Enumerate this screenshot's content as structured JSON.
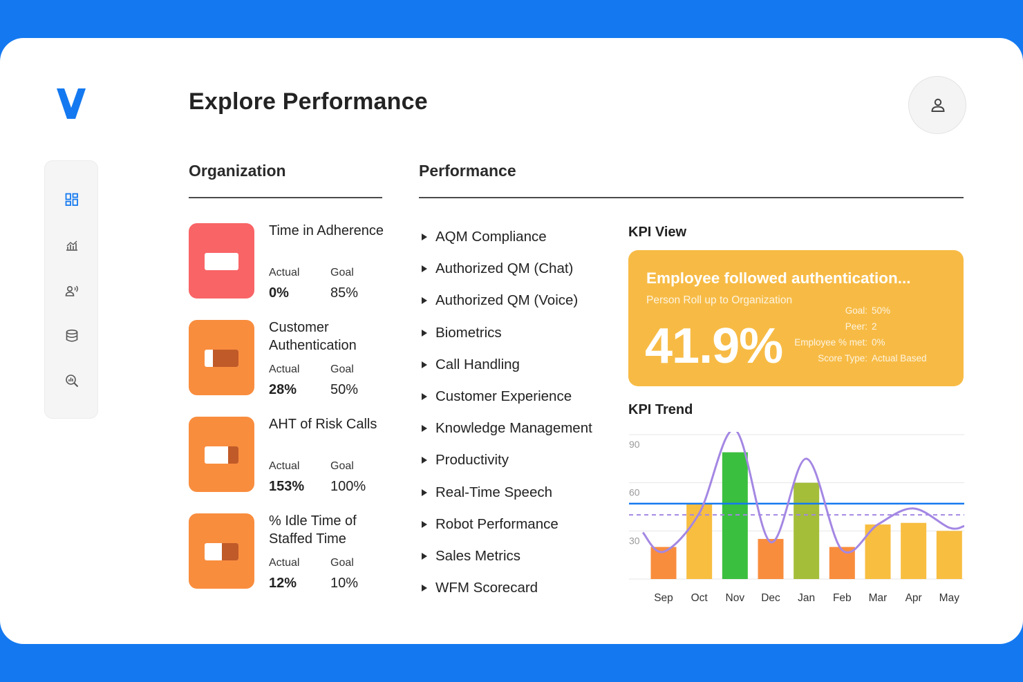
{
  "app": {
    "logo_letter": "V",
    "page_title": "Explore Performance"
  },
  "sidebar": {
    "items": [
      {
        "name": "dashboard-icon",
        "active": true
      },
      {
        "name": "analytics-icon",
        "active": false
      },
      {
        "name": "users-speech-icon",
        "active": false
      },
      {
        "name": "database-icon",
        "active": false
      },
      {
        "name": "search-analytics-icon",
        "active": false
      }
    ]
  },
  "organization": {
    "title": "Organization",
    "actual_label": "Actual",
    "goal_label": "Goal",
    "items": [
      {
        "name": "Time in Adherence",
        "actual": "0%",
        "goal": "85%",
        "color": "#f96466",
        "fill": 0
      },
      {
        "name": "Customer Authentication",
        "actual": "28%",
        "goal": "50%",
        "color": "#f98d3e",
        "fill": 0.75
      },
      {
        "name": "AHT of Risk Calls",
        "actual": "153%",
        "goal": "100%",
        "color": "#f98d3e",
        "fill": 0.3
      },
      {
        "name": "% Idle Time of Staffed Time",
        "actual": "12%",
        "goal": "10%",
        "color": "#f98d3e",
        "fill": 0.5
      }
    ]
  },
  "performance": {
    "title": "Performance",
    "items": [
      "AQM Compliance",
      "Authorized QM (Chat)",
      "Authorized QM (Voice)",
      "Biometrics",
      "Call Handling",
      "Customer Experience",
      "Knowledge Management",
      "Productivity",
      "Real-Time Speech",
      "Robot Performance",
      "Sales Metrics",
      "WFM Scorecard"
    ]
  },
  "kpi_view": {
    "title": "KPI View",
    "headline": "Employee followed authentication...",
    "subtitle": "Person Roll up to Organization",
    "value": "41.9%",
    "stats": [
      {
        "label": "Goal:",
        "value": "50%"
      },
      {
        "label": "Peer:",
        "value": "2"
      },
      {
        "label": "Employee % met:",
        "value": "0%"
      },
      {
        "label": "Score Type:",
        "value": "Actual Based"
      }
    ],
    "color": "#f7bb45"
  },
  "kpi_trend": {
    "title": "KPI Trend"
  },
  "chart_data": {
    "type": "bar",
    "categories": [
      "Sep",
      "Oct",
      "Nov",
      "Dec",
      "Jan",
      "Feb",
      "Mar",
      "Apr",
      "May"
    ],
    "values": [
      20,
      47,
      79,
      25,
      60,
      20,
      34,
      35,
      30
    ],
    "bar_colors": [
      "#f98d3e",
      "#f8be40",
      "#3bbf3f",
      "#f98d3e",
      "#a4be3a",
      "#f98d3e",
      "#f8be40",
      "#f8be40",
      "#f8be40"
    ],
    "trend_line": [
      17,
      41,
      93,
      23,
      75,
      18,
      34,
      44,
      32
    ],
    "goal_line": 47,
    "average_line": 40,
    "ylim": [
      0,
      90
    ],
    "yticks": [
      30,
      60,
      90
    ],
    "grid": true,
    "line_color": "#a487e3",
    "goal_color": "#1479f0",
    "avg_color": "#a487e3"
  }
}
